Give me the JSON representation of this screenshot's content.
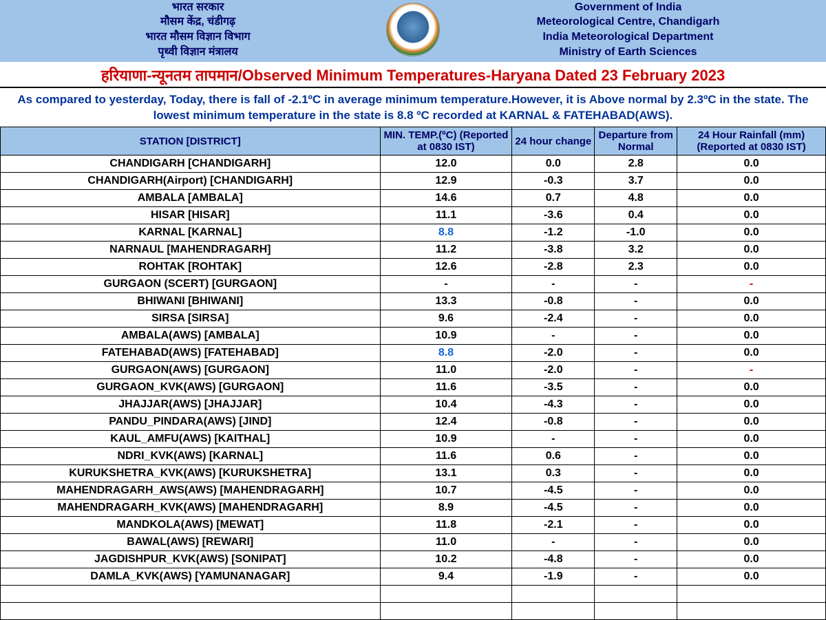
{
  "header": {
    "left_lines": [
      "भारत सरकार",
      "मौसम केंद्र, चंडीगढ़",
      "भारत मौसम विज्ञान विभाग",
      "पृथ्वी विज्ञान मंत्रालय"
    ],
    "right_lines": [
      "Government of India",
      "Meteorological Centre, Chandigarh",
      "India Meteorological Department",
      "Ministry of Earth Sciences"
    ],
    "background_color": "#a0c4e8",
    "text_color": "#000066"
  },
  "title": "हरियाणा-न्यूनतम तापमान/Observed Minimum Temperatures-Haryana Dated 23 February 2023",
  "title_color": "#cc0000",
  "summary": "As compared to yesterday, Today, there is fall of -2.1ºC in average minimum temperature.However, it is Above normal by 2.3ºC in the state. The lowest minimum temperature in the state is 8.8 ºC recorded at KARNAL & FATEHABAD(AWS).",
  "summary_color": "#003399",
  "table": {
    "columns": [
      "STATION  [DISTRICT]",
      "MIN. TEMP.(ºC) (Reported at 0830 IST)",
      "24 hour change",
      "Departure from Normal",
      "24 Hour Rainfall (mm) (Reported at 0830 IST)"
    ],
    "header_bg": "#a0c4e8",
    "header_color": "#000066",
    "highlight_blue": "#1266d4",
    "highlight_red": "#cc0000",
    "rows": [
      {
        "station": "CHANDIGARH  [CHANDIGARH]",
        "temp": "12.0",
        "change": "0.0",
        "dep": "2.8",
        "rain": "0.0"
      },
      {
        "station": "CHANDIGARH(Airport)  [CHANDIGARH]",
        "temp": "12.9",
        "change": "-0.3",
        "dep": "3.7",
        "rain": "0.0"
      },
      {
        "station": "AMBALA  [AMBALA]",
        "temp": "14.6",
        "change": "0.7",
        "dep": "4.8",
        "rain": "0.0"
      },
      {
        "station": "HISAR  [HISAR]",
        "temp": "11.1",
        "change": "-3.6",
        "dep": "0.4",
        "rain": "0.0"
      },
      {
        "station": "KARNAL  [KARNAL]",
        "temp": "8.8",
        "temp_hl": "blue",
        "change": "-1.2",
        "dep": "-1.0",
        "rain": "0.0"
      },
      {
        "station": "NARNAUL  [MAHENDRAGARH]",
        "temp": "11.2",
        "change": "-3.8",
        "dep": "3.2",
        "rain": "0.0"
      },
      {
        "station": "ROHTAK  [ROHTAK]",
        "temp": "12.6",
        "change": "-2.8",
        "dep": "2.3",
        "rain": "0.0"
      },
      {
        "station": "GURGAON (SCERT)  [GURGAON]",
        "temp": "-",
        "change": "-",
        "dep": "-",
        "rain": "-",
        "rain_hl": "red"
      },
      {
        "station": "BHIWANI  [BHIWANI]",
        "temp": "13.3",
        "change": "-0.8",
        "dep": "-",
        "rain": "0.0"
      },
      {
        "station": "SIRSA  [SIRSA]",
        "temp": "9.6",
        "change": "-2.4",
        "dep": "-",
        "rain": "0.0"
      },
      {
        "station": "AMBALA(AWS)  [AMBALA]",
        "temp": "10.9",
        "change": "-",
        "dep": "-",
        "rain": "0.0"
      },
      {
        "station": "FATEHABAD(AWS)  [FATEHABAD]",
        "temp": "8.8",
        "temp_hl": "blue",
        "change": "-2.0",
        "dep": "-",
        "rain": "0.0"
      },
      {
        "station": "GURGAON(AWS)  [GURGAON]",
        "temp": "11.0",
        "change": "-2.0",
        "dep": "-",
        "rain": "-",
        "rain_hl": "red"
      },
      {
        "station": "GURGAON_KVK(AWS)  [GURGAON]",
        "temp": "11.6",
        "change": "-3.5",
        "dep": "-",
        "rain": "0.0"
      },
      {
        "station": "JHAJJAR(AWS)  [JHAJJAR]",
        "temp": "10.4",
        "change": "-4.3",
        "dep": "-",
        "rain": "0.0"
      },
      {
        "station": "PANDU_PINDARA(AWS)  [JIND]",
        "temp": "12.4",
        "change": "-0.8",
        "dep": "-",
        "rain": "0.0"
      },
      {
        "station": "KAUL_AMFU(AWS)  [KAITHAL]",
        "temp": "10.9",
        "change": "-",
        "dep": "-",
        "rain": "0.0"
      },
      {
        "station": "NDRI_KVK(AWS)  [KARNAL]",
        "temp": "11.6",
        "change": "0.6",
        "dep": "-",
        "rain": "0.0"
      },
      {
        "station": "KURUKSHETRA_KVK(AWS)  [KURUKSHETRA]",
        "temp": "13.1",
        "change": "0.3",
        "dep": "-",
        "rain": "0.0"
      },
      {
        "station": "MAHENDRAGARH_AWS(AWS)  [MAHENDRAGARH]",
        "temp": "10.7",
        "change": "-4.5",
        "dep": "-",
        "rain": "0.0"
      },
      {
        "station": "MAHENDRAGARH_KVK(AWS)  [MAHENDRAGARH]",
        "temp": "8.9",
        "change": "-4.5",
        "dep": "-",
        "rain": "0.0"
      },
      {
        "station": "MANDKOLA(AWS)  [MEWAT]",
        "temp": "11.8",
        "change": "-2.1",
        "dep": "-",
        "rain": "0.0"
      },
      {
        "station": "BAWAL(AWS)  [REWARI]",
        "temp": "11.0",
        "change": "-",
        "dep": "-",
        "rain": "0.0"
      },
      {
        "station": "JAGDISHPUR_KVK(AWS)  [SONIPAT]",
        "temp": "10.2",
        "change": "-4.8",
        "dep": "-",
        "rain": "0.0"
      },
      {
        "station": "DAMLA_KVK(AWS)  [YAMUNANAGAR]",
        "temp": "9.4",
        "change": "-1.9",
        "dep": "-",
        "rain": "0.0"
      },
      {
        "station": "",
        "temp": "",
        "change": "",
        "dep": "",
        "rain": ""
      },
      {
        "station": "",
        "temp": "",
        "change": "",
        "dep": "",
        "rain": ""
      }
    ]
  }
}
